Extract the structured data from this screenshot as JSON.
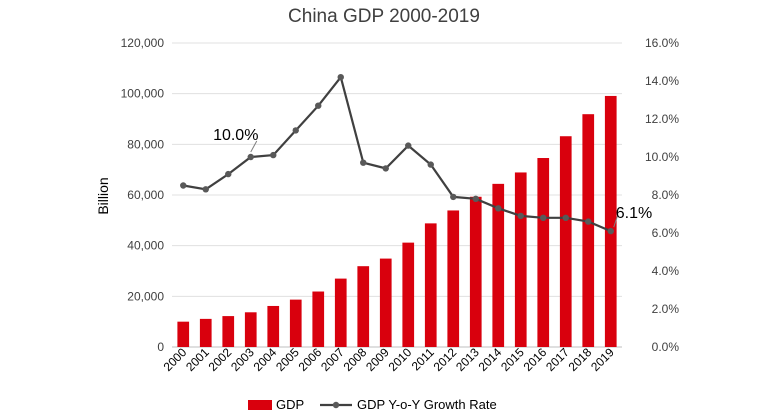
{
  "chart_data": {
    "type": "bar",
    "title": "China GDP 2000-2019",
    "categories": [
      "2000",
      "2001",
      "2002",
      "2003",
      "2004",
      "2005",
      "2006",
      "2007",
      "2008",
      "2009",
      "2010",
      "2011",
      "2012",
      "2013",
      "2014",
      "2015",
      "2016",
      "2017",
      "2018",
      "2019"
    ],
    "series": [
      {
        "name": "GDP",
        "type": "bar",
        "axis": "left",
        "color": "#d9000d",
        "values": [
          10000,
          11100,
          12200,
          13700,
          16200,
          18700,
          21900,
          27000,
          31900,
          34900,
          41200,
          48800,
          53900,
          59300,
          64400,
          68900,
          74600,
          83200,
          91900,
          99100
        ]
      },
      {
        "name": "GDP Y-o-Y Growth Rate",
        "type": "line",
        "axis": "right",
        "color": "#404040",
        "values": [
          8.5,
          8.3,
          9.1,
          10.0,
          10.1,
          11.4,
          12.7,
          14.2,
          9.7,
          9.4,
          10.6,
          9.6,
          7.9,
          7.8,
          7.3,
          6.9,
          6.8,
          6.8,
          6.6,
          6.1
        ]
      }
    ],
    "ylabel": "Billion",
    "ylim": [
      0,
      120000
    ],
    "y_ticks": [
      "0",
      "20,000",
      "40,000",
      "60,000",
      "80,000",
      "100,000",
      "120,000"
    ],
    "y2lim": [
      0,
      16
    ],
    "y2_ticks": [
      "0.0%",
      "2.0%",
      "4.0%",
      "6.0%",
      "8.0%",
      "10.0%",
      "12.0%",
      "14.0%",
      "16.0%"
    ],
    "annotations": [
      {
        "text": "10.0%",
        "category": "2003"
      },
      {
        "text": "6.1%",
        "category": "2019"
      }
    ],
    "grid": true,
    "legend": "bottom"
  }
}
